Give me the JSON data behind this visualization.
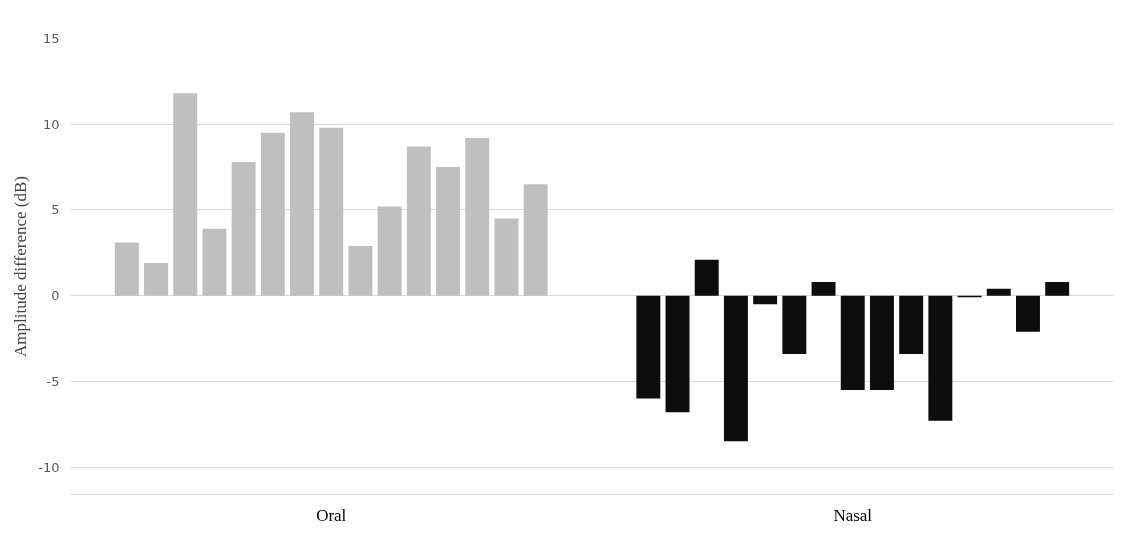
{
  "chart_data": {
    "type": "bar",
    "ylabel": "Amplitude difference (dB)",
    "categories": [
      "Oral",
      "Nasal"
    ],
    "ylim": [
      -11.6,
      15
    ],
    "yticks": [
      -10,
      -5,
      0,
      5,
      10,
      15
    ],
    "grid": "y",
    "series": [
      {
        "colors": [
          "#bfbfbf",
          "#0d0d0d"
        ],
        "values": [
          3.1,
          -6.0
        ]
      },
      {
        "colors": [
          "#bfbfbf",
          "#0d0d0d"
        ],
        "values": [
          1.9,
          -6.8
        ]
      },
      {
        "colors": [
          "#bfbfbf",
          "#0d0d0d"
        ],
        "values": [
          11.8,
          2.1
        ]
      },
      {
        "colors": [
          "#bfbfbf",
          "#0d0d0d"
        ],
        "values": [
          3.9,
          -8.5
        ]
      },
      {
        "colors": [
          "#bfbfbf",
          "#0d0d0d"
        ],
        "values": [
          7.8,
          -0.5
        ]
      },
      {
        "colors": [
          "#bfbfbf",
          "#0d0d0d"
        ],
        "values": [
          9.5,
          -3.4
        ]
      },
      {
        "colors": [
          "#bfbfbf",
          "#0d0d0d"
        ],
        "values": [
          10.7,
          0.8
        ]
      },
      {
        "colors": [
          "#bfbfbf",
          "#0d0d0d"
        ],
        "values": [
          9.8,
          -5.5
        ]
      },
      {
        "colors": [
          "#bfbfbf",
          "#0d0d0d"
        ],
        "values": [
          2.9,
          -5.5
        ]
      },
      {
        "colors": [
          "#bfbfbf",
          "#0d0d0d"
        ],
        "values": [
          5.2,
          -3.4
        ]
      },
      {
        "colors": [
          "#bfbfbf",
          "#0d0d0d"
        ],
        "values": [
          8.7,
          -7.3
        ]
      },
      {
        "colors": [
          "#bfbfbf",
          "#0d0d0d"
        ],
        "values": [
          7.5,
          -0.1
        ]
      },
      {
        "colors": [
          "#bfbfbf",
          "#0d0d0d"
        ],
        "values": [
          9.2,
          0.4
        ]
      },
      {
        "colors": [
          "#bfbfbf",
          "#0d0d0d"
        ],
        "values": [
          4.5,
          -2.1
        ]
      },
      {
        "colors": [
          "#bfbfbf",
          "#0d0d0d"
        ],
        "values": [
          6.5,
          0.8
        ]
      }
    ]
  }
}
